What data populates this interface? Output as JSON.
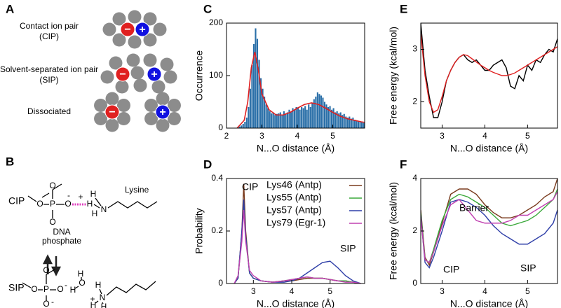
{
  "panel_a": {
    "label": "A",
    "rows": [
      [
        "Contact ion pair",
        "(CIP)"
      ],
      [
        "Solvent-separated ion pair",
        "(SIP)"
      ],
      [
        "Dissociated"
      ]
    ],
    "signs": [
      "−",
      "+"
    ]
  },
  "panel_b": {
    "label": "B",
    "cip": "CIP",
    "sip": "SIP",
    "lysine": "Lysine",
    "phosphate": [
      "DNA",
      "phosphate"
    ],
    "atoms": {
      "o": "O",
      "p": "P",
      "h": "H",
      "n": "N"
    },
    "charges": [
      "-",
      "+"
    ]
  },
  "chart_data": [
    {
      "type": "histogram",
      "label": "C",
      "xlabel": "N...O distance (Å)",
      "ylabel": "Occurrence",
      "xlim": [
        2,
        5.9
      ],
      "xticks": [
        2,
        3,
        4,
        5
      ],
      "ylim": [
        0,
        200
      ],
      "yticks": [
        0,
        100,
        200
      ],
      "color": "#2a6fa8",
      "bins": [
        2.3,
        2.35,
        2.4,
        2.45,
        2.5,
        2.55,
        2.6,
        2.65,
        2.7,
        2.75,
        2.8,
        2.85,
        2.9,
        2.95,
        3.0,
        3.05,
        3.1,
        3.15,
        3.2,
        3.25,
        3.3,
        3.35,
        3.4,
        3.45,
        3.5,
        3.55,
        3.6,
        3.65,
        3.7,
        3.75,
        3.8,
        3.85,
        3.9,
        3.95,
        4.0,
        4.05,
        4.1,
        4.15,
        4.2,
        4.25,
        4.3,
        4.35,
        4.4,
        4.45,
        4.5,
        4.55,
        4.6,
        4.65,
        4.7,
        4.75,
        4.8,
        4.85,
        4.9,
        4.95,
        5.0,
        5.05,
        5.1,
        5.15,
        5.2,
        5.25,
        5.3,
        5.35,
        5.4,
        5.45,
        5.5,
        5.55,
        5.6,
        5.65,
        5.7,
        5.75,
        5.8,
        5.85,
        5.9
      ],
      "values": [
        2,
        3,
        5,
        8,
        12,
        20,
        40,
        75,
        120,
        160,
        190,
        170,
        130,
        95,
        75,
        60,
        45,
        38,
        32,
        28,
        30,
        25,
        27,
        28,
        30,
        25,
        32,
        28,
        30,
        35,
        30,
        38,
        35,
        40,
        38,
        35,
        40,
        38,
        42,
        35,
        45,
        40,
        48,
        55,
        60,
        68,
        65,
        62,
        58,
        50,
        45,
        40,
        42,
        35,
        38,
        30,
        32,
        28,
        30,
        25,
        27,
        22,
        20,
        22,
        18,
        20,
        16,
        15,
        14,
        13,
        12,
        10
      ],
      "fit": {
        "color": "#e02020",
        "x": [
          2.3,
          2.5,
          2.6,
          2.7,
          2.8,
          2.9,
          3.0,
          3.2,
          3.4,
          3.6,
          3.8,
          4.0,
          4.2,
          4.4,
          4.6,
          4.8,
          5.0,
          5.2,
          5.4,
          5.6,
          5.8,
          5.9
        ],
        "values": [
          0,
          15,
          50,
          115,
          145,
          110,
          65,
          35,
          25,
          25,
          30,
          38,
          45,
          48,
          45,
          38,
          30,
          23,
          18,
          15,
          12,
          11
        ]
      }
    },
    {
      "type": "line",
      "label": "D",
      "xlabel": "N...O distance (Å)",
      "ylabel": "Probability",
      "xlim": [
        2.3,
        5.9
      ],
      "xticks": [
        3,
        4,
        5
      ],
      "ylim": [
        0,
        0.4
      ],
      "yticks": [
        0,
        0.2,
        0.4
      ],
      "legend": "top-right",
      "annotations": [
        "CIP",
        "SIP"
      ],
      "x": [
        2.5,
        2.6,
        2.7,
        2.75,
        2.8,
        2.9,
        3.0,
        3.2,
        3.5,
        3.8,
        4.0,
        4.2,
        4.4,
        4.6,
        4.8,
        5.0,
        5.2,
        5.4,
        5.6,
        5.8
      ],
      "series": [
        {
          "name": "Lys46 (Antp)",
          "color": "#7a3b1e",
          "values": [
            0,
            0.02,
            0.2,
            0.38,
            0.2,
            0.04,
            0.02,
            0.01,
            0.005,
            0.01,
            0.01,
            0.015,
            0.02,
            0.02,
            0.02,
            0.015,
            0.01,
            0.01,
            0.005,
            0
          ]
        },
        {
          "name": "Lys55 (Antp)",
          "color": "#3aa83a",
          "values": [
            0,
            0.02,
            0.18,
            0.31,
            0.18,
            0.04,
            0.02,
            0.01,
            0.005,
            0.01,
            0.015,
            0.02,
            0.025,
            0.02,
            0.02,
            0.015,
            0.01,
            0.01,
            0.005,
            0
          ]
        },
        {
          "name": "Lys57 (Antp)",
          "color": "#2f3fa8",
          "values": [
            0,
            0.02,
            0.2,
            0.32,
            0.18,
            0.04,
            0.02,
            0.01,
            0.005,
            0.005,
            0.01,
            0.02,
            0.04,
            0.06,
            0.08,
            0.085,
            0.06,
            0.03,
            0.01,
            0
          ]
        },
        {
          "name": "Lys79 (Egr-1)",
          "color": "#c040b0",
          "values": [
            0,
            0.03,
            0.16,
            0.28,
            0.16,
            0.05,
            0.03,
            0.01,
            0.005,
            0.01,
            0.015,
            0.02,
            0.025,
            0.02,
            0.02,
            0.015,
            0.01,
            0.005,
            0.005,
            0
          ]
        }
      ]
    },
    {
      "type": "line",
      "label": "E",
      "xlabel": "N...O distance (Å)",
      "ylabel": "Free energy (kcal/mol)",
      "xlim": [
        2.5,
        5.7
      ],
      "xticks": [
        3,
        4,
        5
      ],
      "ylim": [
        1.5,
        3.5
      ],
      "yticks": [
        2,
        3
      ],
      "x": [
        2.5,
        2.6,
        2.7,
        2.8,
        2.9,
        3.0,
        3.1,
        3.2,
        3.3,
        3.4,
        3.5,
        3.6,
        3.7,
        3.8,
        3.9,
        4.0,
        4.1,
        4.2,
        4.3,
        4.4,
        4.5,
        4.6,
        4.7,
        4.8,
        4.9,
        5.0,
        5.1,
        5.2,
        5.3,
        5.4,
        5.5,
        5.6,
        5.7
      ],
      "series": [
        {
          "color": "#000000",
          "values": [
            3.5,
            2.6,
            2.1,
            1.7,
            1.7,
            2.0,
            2.4,
            2.6,
            2.75,
            2.85,
            2.9,
            2.8,
            2.75,
            2.8,
            2.7,
            2.6,
            2.6,
            2.7,
            2.75,
            2.8,
            2.65,
            2.3,
            2.25,
            2.5,
            2.4,
            2.7,
            2.6,
            2.8,
            2.75,
            2.9,
            3.0,
            2.95,
            3.2
          ]
        },
        {
          "color": "#e02020",
          "values": [
            3.3,
            2.5,
            2.0,
            1.8,
            1.85,
            2.1,
            2.4,
            2.6,
            2.75,
            2.85,
            2.9,
            2.88,
            2.82,
            2.76,
            2.7,
            2.65,
            2.6,
            2.56,
            2.53,
            2.5,
            2.5,
            2.52,
            2.55,
            2.6,
            2.65,
            2.7,
            2.75,
            2.8,
            2.85,
            2.9,
            2.95,
            3.0,
            3.05
          ]
        }
      ]
    },
    {
      "type": "line",
      "label": "F",
      "xlabel": "N...O distance (Å)",
      "ylabel": "Free energy (kcal/mol)",
      "xlim": [
        2.5,
        5.7
      ],
      "xticks": [
        3,
        4,
        5
      ],
      "ylim": [
        0,
        4
      ],
      "yticks": [
        0,
        2,
        4
      ],
      "annotations": [
        "Barrier",
        "CIP",
        "SIP"
      ],
      "x": [
        2.5,
        2.6,
        2.7,
        2.8,
        3.0,
        3.2,
        3.4,
        3.6,
        3.8,
        4.0,
        4.2,
        4.4,
        4.6,
        4.8,
        5.0,
        5.2,
        5.4,
        5.6,
        5.7
      ],
      "series": [
        {
          "color": "#7a3b1e",
          "values": [
            2.8,
            1.0,
            0.7,
            1.2,
            2.3,
            3.4,
            3.6,
            3.6,
            3.4,
            3.0,
            2.7,
            2.5,
            2.5,
            2.6,
            2.8,
            3.0,
            3.3,
            3.5,
            4.0
          ]
        },
        {
          "color": "#3aa83a",
          "values": [
            2.7,
            0.9,
            0.8,
            1.3,
            2.4,
            3.2,
            3.4,
            3.3,
            3.1,
            2.9,
            2.6,
            2.3,
            2.2,
            2.3,
            2.4,
            2.6,
            2.9,
            3.2,
            3.6
          ]
        },
        {
          "color": "#2f3fa8",
          "values": [
            2.6,
            0.8,
            0.6,
            1.0,
            2.0,
            3.1,
            3.2,
            3.1,
            2.9,
            2.6,
            2.2,
            1.9,
            1.7,
            1.5,
            1.5,
            1.7,
            1.9,
            2.3,
            2.8
          ]
        },
        {
          "color": "#c040b0",
          "values": [
            2.5,
            0.9,
            0.8,
            1.2,
            2.2,
            3.0,
            3.2,
            2.8,
            2.4,
            2.3,
            2.3,
            2.3,
            2.4,
            2.6,
            2.6,
            2.8,
            3.0,
            3.2,
            3.5
          ]
        }
      ]
    }
  ]
}
